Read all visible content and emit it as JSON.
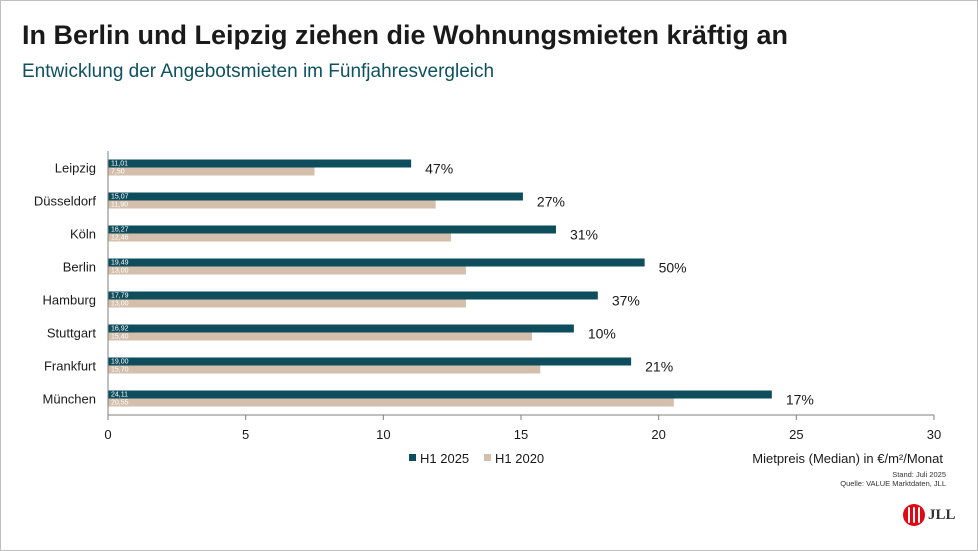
{
  "header": {
    "title": "In Berlin und Leipzig ziehen die Wohnungsmieten kräftig an",
    "subtitle": "Entwicklung der Angebotsmieten im Fünfjahresvergleich"
  },
  "chart_data": {
    "type": "bar",
    "orientation": "horizontal",
    "categories": [
      "Leipzig",
      "Düsseldorf",
      "Köln",
      "Berlin",
      "Hamburg",
      "Stuttgart",
      "Frankfurt",
      "München"
    ],
    "series": [
      {
        "name": "H1 2025",
        "color": "#0e4d5c",
        "values": [
          11.01,
          15.07,
          16.27,
          19.49,
          17.79,
          16.92,
          19.0,
          24.11
        ],
        "labels": [
          "11,01",
          "15,07",
          "16,27",
          "19,49",
          "17,79",
          "16,92",
          "19,00",
          "24,11"
        ]
      },
      {
        "name": "H1 2020",
        "color": "#d4bfac",
        "values": [
          7.5,
          11.9,
          12.46,
          13.0,
          13.0,
          15.4,
          15.7,
          20.55
        ],
        "labels": [
          "7,50",
          "11,90",
          "12,46",
          "13,00",
          "13,00",
          "15,40",
          "15,70",
          "20,55"
        ]
      }
    ],
    "change_labels": [
      "47%",
      "27%",
      "31%",
      "50%",
      "37%",
      "10%",
      "21%",
      "17%"
    ],
    "xlim": [
      0,
      30
    ],
    "xticks": [
      "0",
      "5",
      "10",
      "15",
      "20",
      "25",
      "30"
    ],
    "xlabel": "Mietpreis (Median) in €/m²/Monat",
    "legend_position": "bottom",
    "grid": false
  },
  "footer": {
    "stand": "Stand: Juli 2025",
    "quelle": "Quelle: VALUE Marktdaten, JLL",
    "logo_text": "JLL"
  }
}
